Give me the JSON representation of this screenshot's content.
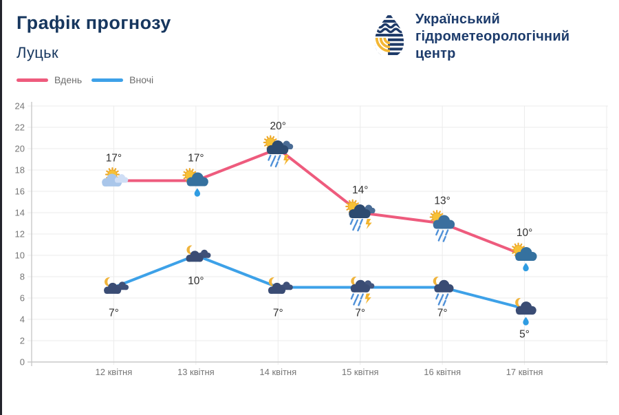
{
  "header": {
    "title": "Графік прогнозу",
    "subtitle": "Луцьк"
  },
  "brand": {
    "name_lines": [
      "Український",
      "гідрометеорологічний",
      "центр"
    ]
  },
  "legend": {
    "items": [
      {
        "label": "Вдень",
        "color": "#ee5b7d"
      },
      {
        "label": "Вночі",
        "color": "#3da1e8"
      }
    ]
  },
  "chart_data": {
    "type": "line",
    "title": "",
    "xlabel": "",
    "ylabel": "",
    "unit": "°",
    "categories": [
      "12 квітня",
      "13 квітня",
      "14 квітня",
      "15 квітня",
      "16 квітня",
      "17 квітня"
    ],
    "series": [
      {
        "name": "Вдень",
        "color": "#ee5b7d",
        "values": [
          17,
          17,
          20,
          14,
          13,
          10
        ],
        "labels": [
          "17°",
          "17°",
          "20°",
          "14°",
          "13°",
          "10°"
        ],
        "label_position": "above",
        "icons": [
          "sun-cloud",
          "sun-cloud-drop",
          "sun-storm",
          "sun-storm",
          "sun-rain",
          "sun-cloud-drop"
        ]
      },
      {
        "name": "Вночі",
        "color": "#3da1e8",
        "values": [
          7,
          10,
          7,
          7,
          7,
          5
        ],
        "labels": [
          "7°",
          "10°",
          "7°",
          "7°",
          "7°",
          "5°"
        ],
        "label_position": "below",
        "icons": [
          "moon-cloud",
          "moon-cloud",
          "moon-cloud",
          "moon-storm",
          "moon-rain",
          "moon-drop"
        ]
      }
    ],
    "ylim": [
      0,
      24
    ],
    "ytick_step": 2,
    "grid": true,
    "legend_position": "top-left"
  },
  "colors": {
    "title_navy": "#16365e",
    "brand_navy": "#1d3c6c",
    "brand_yellow": "#f3b735",
    "grid": "#ebebeb",
    "axis": "#c9c9c9",
    "tick_text": "#757575",
    "temp_text": "#2f2f2f"
  }
}
